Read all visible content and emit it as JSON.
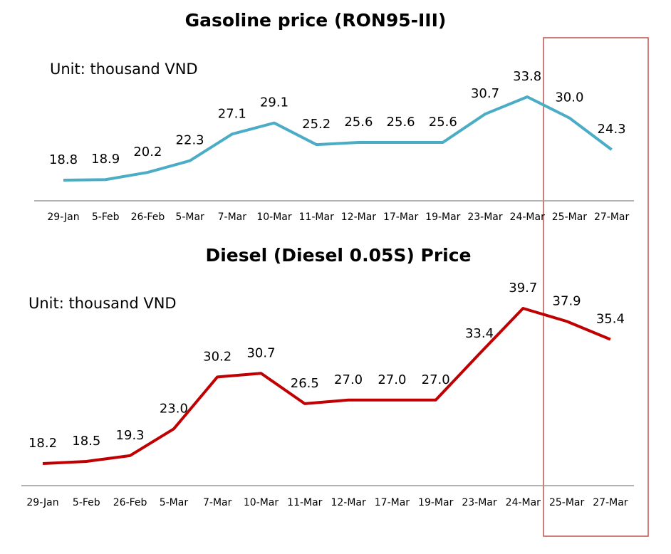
{
  "chart_data": [
    {
      "type": "line",
      "title": "Gasoline price (RON95-III)",
      "unit_label": "Unit: thousand VND",
      "categories": [
        "29-Jan",
        "5-Feb",
        "26-Feb",
        "5-Mar",
        "7-Mar",
        "10-Mar",
        "11-Mar",
        "12-Mar",
        "17-Mar",
        "19-Mar",
        "23-Mar",
        "24-Mar",
        "25-Mar",
        "27-Mar"
      ],
      "series": [
        {
          "color": "#4bacc6",
          "values": [
            18.8,
            18.9,
            20.2,
            22.3,
            27.1,
            29.1,
            25.2,
            25.6,
            25.6,
            25.6,
            30.7,
            33.8,
            30.0,
            24.3
          ],
          "value_labels": [
            "18.8",
            "18.9",
            "20.2",
            "22.3",
            "27.1",
            "29.1",
            "25.2",
            "25.6",
            "25.6",
            "25.6",
            "30.7",
            "33.8",
            "30.0",
            "24.3"
          ]
        }
      ]
    },
    {
      "type": "line",
      "title": "Diesel (Diesel 0.05S) Price",
      "unit_label": "Unit: thousand VND",
      "categories": [
        "29-Jan",
        "5-Feb",
        "26-Feb",
        "5-Mar",
        "7-Mar",
        "10-Mar",
        "11-Mar",
        "12-Mar",
        "17-Mar",
        "19-Mar",
        "23-Mar",
        "24-Mar",
        "25-Mar",
        "27-Mar"
      ],
      "series": [
        {
          "color": "#c00000",
          "values": [
            18.2,
            18.5,
            19.3,
            23.0,
            30.2,
            30.7,
            26.5,
            27.0,
            27.0,
            27.0,
            33.4,
            39.7,
            37.9,
            35.4
          ],
          "value_labels": [
            "18.2",
            "18.5",
            "19.3",
            "23.0",
            "30.2",
            "30.7",
            "26.5",
            "27.0",
            "27.0",
            "27.0",
            "33.4",
            "39.7",
            "37.9",
            "35.4"
          ]
        }
      ]
    }
  ]
}
